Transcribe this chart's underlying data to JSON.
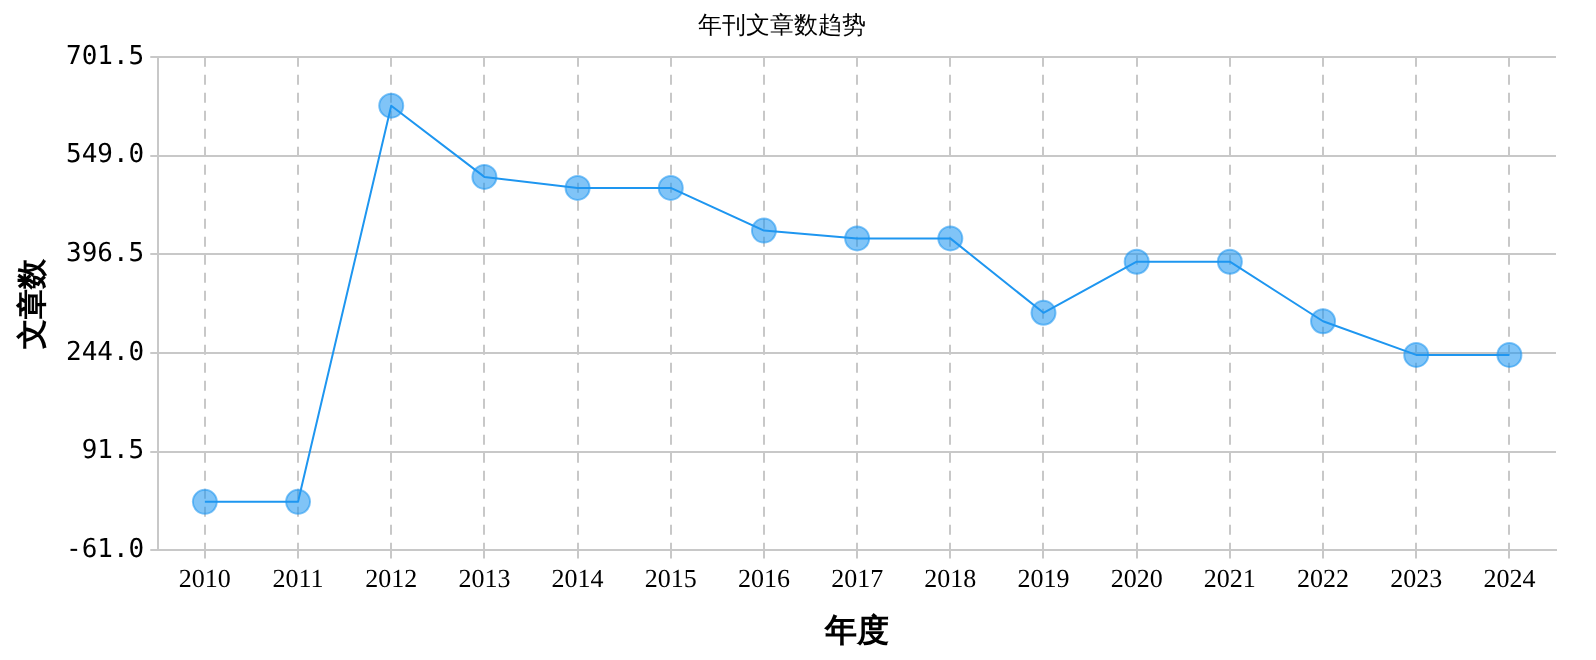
{
  "chart_data": {
    "type": "line",
    "title": "年刊文章数趋势",
    "xlabel": "年度",
    "ylabel": "文章数",
    "categories": [
      "2010",
      "2011",
      "2012",
      "2013",
      "2014",
      "2015",
      "2016",
      "2017",
      "2018",
      "2019",
      "2020",
      "2021",
      "2022",
      "2023",
      "2024"
    ],
    "series": [
      {
        "color": "#1e96f0",
        "values": [
          14,
          14,
          626,
          516,
          499,
          499,
          433,
          421,
          421,
          306,
          385,
          385,
          293,
          241,
          241
        ]
      }
    ],
    "ylim": [
      -61,
      701.5
    ],
    "yticks": [
      {
        "value": -61,
        "label": "-61.0"
      },
      91.5,
      {
        "value": 244,
        "label": "244.0"
      },
      396.5,
      {
        "value": 549,
        "label": "549.0"
      },
      701.5
    ],
    "grid": true,
    "legend": false,
    "marker": "circle",
    "line_style": "solid"
  }
}
